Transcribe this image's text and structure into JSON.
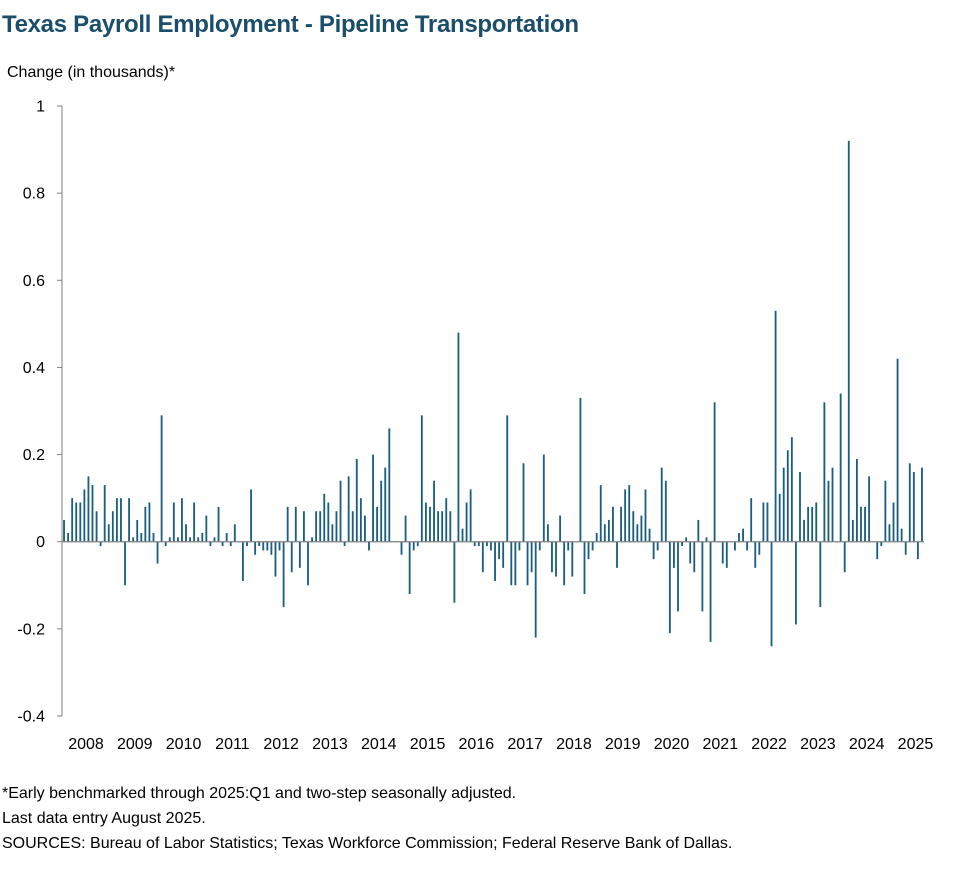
{
  "title": "Texas Payroll Employment - Pipeline Transportation",
  "notes": {
    "line1": "*Early benchmarked through 2025:Q1 and two-step seasonally adjusted.",
    "line2": "Last data entry August 2025.",
    "line3": "SOURCES: Bureau of Labor Statistics; Texas Workforce Commission; Federal Reserve Bank of Dallas."
  },
  "colors": {
    "bar": "#1b5e7e",
    "axis": "#808080",
    "title": "#1b4e6b"
  },
  "chart_data": {
    "type": "bar",
    "title": "Texas Payroll Employment - Pipeline Transportation",
    "ylabel": "Change (in thousands)*",
    "xlabel": "",
    "ylim": [
      -0.4,
      1.0
    ],
    "yticks": [
      1,
      0.8,
      0.6,
      0.4,
      0.2,
      0,
      -0.2,
      -0.4
    ],
    "ytick_labels": [
      "1",
      "0.8",
      "0.6",
      "0.4",
      "0.2",
      "0",
      "-0.2",
      "-0.4"
    ],
    "xtick_labels": [
      "2008",
      "2009",
      "2010",
      "2011",
      "2012",
      "2013",
      "2014",
      "2015",
      "2016",
      "2017",
      "2018",
      "2019",
      "2020",
      "2021",
      "2022",
      "2023",
      "2024",
      "2025"
    ],
    "grid": false,
    "frequency": "monthly",
    "start": "2008-01",
    "end": "2025-08",
    "series": [
      {
        "values": [
          0.05,
          0.02,
          0.1,
          0.09,
          0.09,
          0.12,
          0.15,
          0.13,
          0.07,
          -0.01,
          0.13,
          0.04,
          0.07,
          0.1,
          0.1,
          -0.1,
          0.1,
          0.01,
          0.05,
          0.02,
          0.08,
          0.09,
          0.02,
          -0.05,
          0.29,
          -0.01,
          0.01,
          0.09,
          0.01,
          0.1,
          0.04,
          0.01,
          0.09,
          0.01,
          0.02,
          0.06,
          -0.01,
          0.01,
          0.08,
          -0.01,
          0.02,
          -0.01,
          0.04,
          0.0,
          -0.09,
          -0.01,
          0.12,
          -0.03,
          -0.01,
          -0.02,
          -0.02,
          -0.03,
          -0.08,
          -0.02,
          -0.15,
          0.08,
          -0.07,
          0.08,
          -0.06,
          0.07,
          -0.1,
          0.01,
          0.07,
          0.07,
          0.11,
          0.09,
          0.04,
          0.07,
          0.14,
          -0.01,
          0.15,
          0.07,
          0.19,
          0.1,
          0.06,
          -0.02,
          0.2,
          0.08,
          0.14,
          0.17,
          0.26,
          0.0,
          0.0,
          -0.03,
          0.06,
          -0.12,
          -0.02,
          -0.01,
          0.29,
          0.09,
          0.08,
          0.14,
          0.07,
          0.07,
          0.1,
          0.07,
          -0.14,
          0.48,
          0.03,
          0.09,
          0.12,
          -0.01,
          -0.01,
          -0.07,
          -0.01,
          -0.02,
          -0.09,
          -0.04,
          -0.06,
          0.29,
          -0.1,
          -0.1,
          -0.02,
          0.18,
          -0.1,
          -0.07,
          -0.22,
          -0.02,
          0.2,
          0.04,
          -0.07,
          -0.08,
          0.06,
          -0.1,
          -0.02,
          -0.08,
          0.0,
          0.33,
          -0.12,
          -0.04,
          -0.02,
          0.02,
          0.13,
          0.04,
          0.05,
          0.08,
          -0.06,
          0.08,
          0.12,
          0.13,
          0.07,
          0.04,
          0.06,
          0.12,
          0.03,
          -0.04,
          -0.02,
          0.17,
          0.14,
          -0.21,
          -0.06,
          -0.16,
          -0.01,
          0.01,
          -0.05,
          -0.07,
          0.05,
          -0.16,
          0.01,
          -0.23,
          0.32,
          0.0,
          -0.05,
          -0.06,
          0.0,
          -0.02,
          0.02,
          0.03,
          -0.02,
          0.1,
          -0.06,
          -0.03,
          0.09,
          0.09,
          -0.24,
          0.53,
          0.11,
          0.17,
          0.21,
          0.24,
          -0.19,
          0.16,
          0.05,
          0.08,
          0.08,
          0.09,
          -0.15,
          0.32,
          0.14,
          0.17,
          0.0,
          0.34,
          -0.07,
          0.92,
          0.05,
          0.19,
          0.08,
          0.08,
          0.15,
          0.0,
          -0.04,
          -0.01,
          0.14,
          0.04,
          0.09,
          0.42,
          0.03,
          -0.03,
          0.18,
          0.16,
          -0.04,
          0.17
        ]
      }
    ]
  }
}
